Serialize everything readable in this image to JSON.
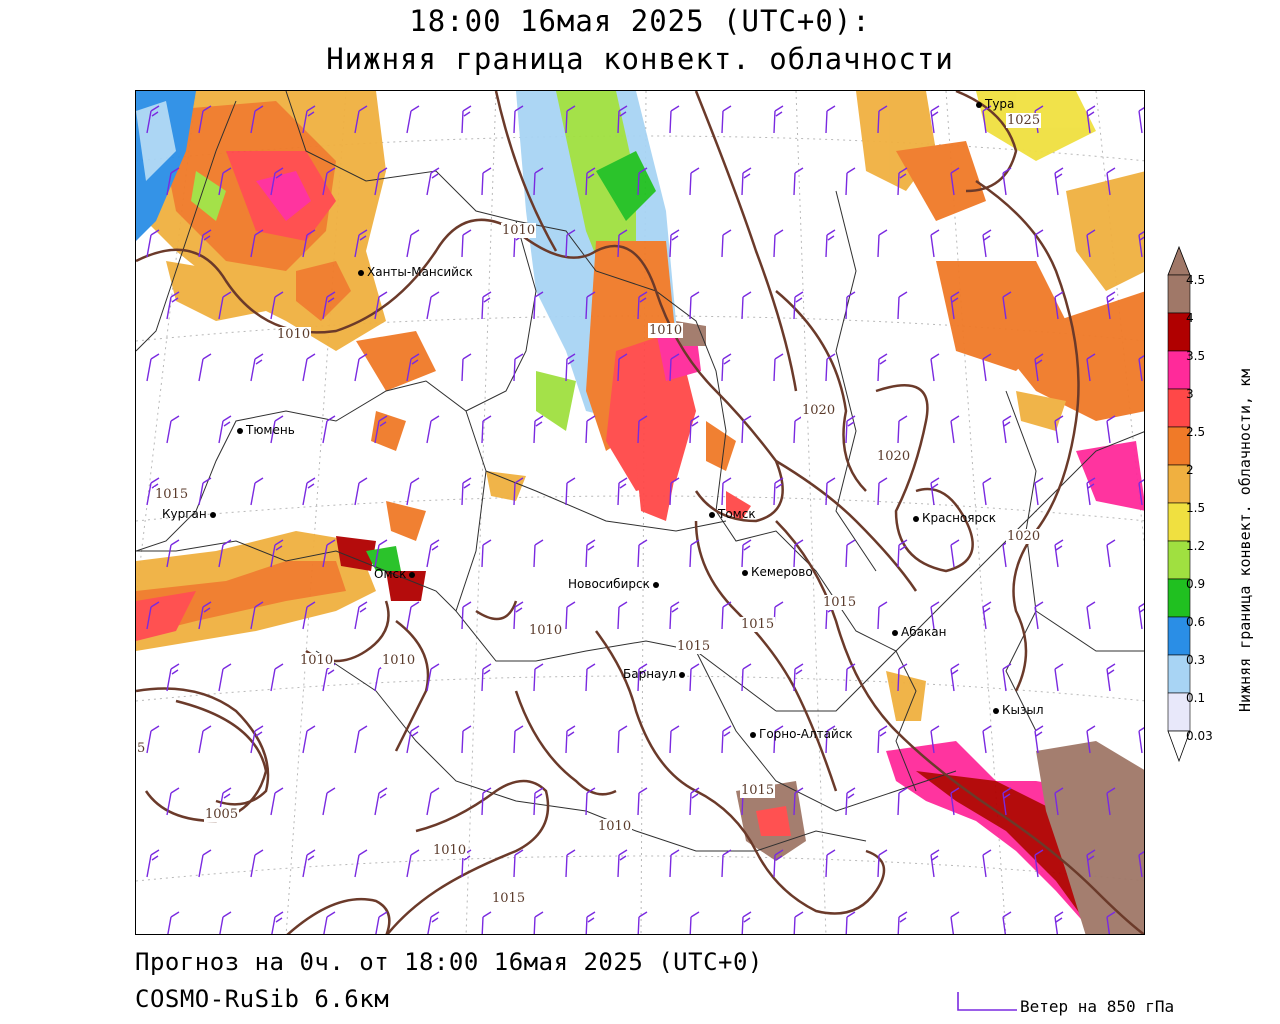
{
  "header": {
    "line1": "18:00 16мая 2025 (UTC+0):",
    "line2": "Нижняя граница конвект. облачности"
  },
  "footer": {
    "forecast": "Прогноз на 0ч. от 18:00 16мая 2025 (UTC+0)",
    "model": "COSMO-RuSib 6.6км",
    "wind_legend": "Ветер на 850 гПа"
  },
  "colorbar": {
    "title": "Нижняя граница конвект. облачности, км",
    "levels": [
      "4.5",
      "4",
      "3.5",
      "3",
      "2.5",
      "2",
      "1.5",
      "1.2",
      "0.9",
      "0.6",
      "0.3",
      "0.1",
      "0.03"
    ],
    "colors": [
      "#a07868",
      "#b00000",
      "#ff2a9a",
      "#ff4848",
      "#f07a28",
      "#f0b040",
      "#f0e040",
      "#a0e040",
      "#20c020",
      "#2a8ee6",
      "#a8d4f4",
      "#e8e8fa",
      "#ffffff"
    ]
  },
  "cities": [
    {
      "name": "Тура"
    },
    {
      "name": "Ханты-Мансийск"
    },
    {
      "name": "Тюмень"
    },
    {
      "name": "Курган"
    },
    {
      "name": "Омск"
    },
    {
      "name": "Новосибирск"
    },
    {
      "name": "Томск"
    },
    {
      "name": "Кемерово"
    },
    {
      "name": "Красноярск"
    },
    {
      "name": "Абакан"
    },
    {
      "name": "Барнаул"
    },
    {
      "name": "Горно-Алтайск"
    },
    {
      "name": "Кызыл"
    }
  ],
  "isobar_labels": [
    "1025",
    "1010",
    "1010",
    "1010",
    "1020",
    "1020",
    "1015",
    "1015",
    "1020",
    "1015",
    "1015",
    "1015",
    "1010",
    "1010",
    "1005",
    "1010",
    "1010",
    "1010",
    "1015",
    "5"
  ],
  "colors": {
    "isobar": "#6b3a2a",
    "wind_barb": "#7a2ae0",
    "border": "#000000"
  }
}
